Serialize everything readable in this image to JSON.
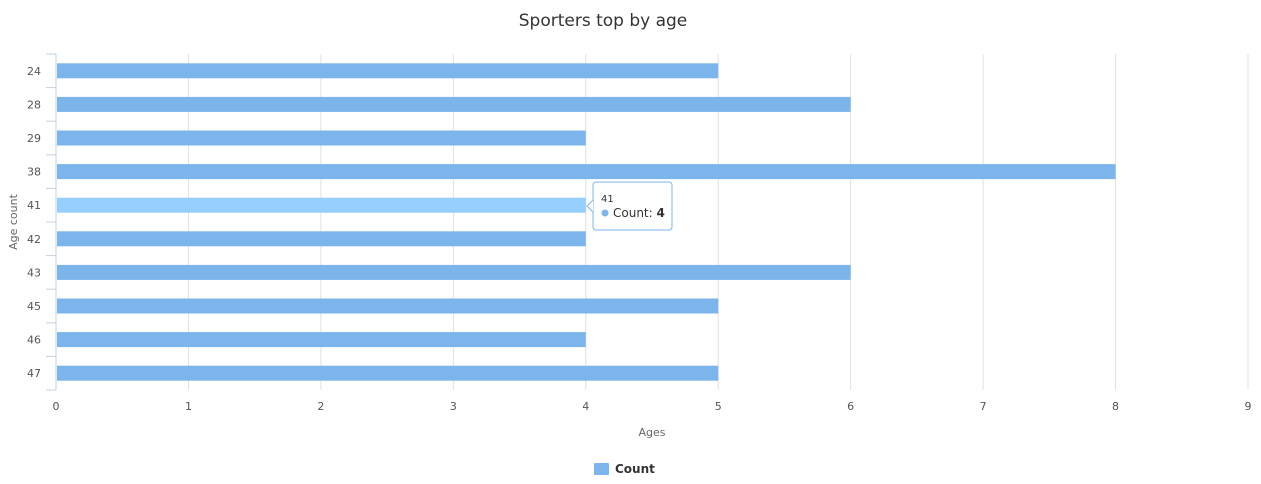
{
  "chart_data": {
    "type": "bar",
    "orientation": "horizontal",
    "title": "Sporters top by age",
    "xlabel": "Ages",
    "ylabel": "Age count",
    "categories": [
      "24",
      "28",
      "29",
      "38",
      "41",
      "42",
      "43",
      "45",
      "46",
      "47"
    ],
    "series": [
      {
        "name": "Count",
        "values": [
          5,
          6,
          4,
          8,
          4,
          4,
          6,
          5,
          4,
          5
        ],
        "color": "#7cb5ec"
      }
    ],
    "xlim": [
      0,
      9
    ],
    "x_ticks": [
      0,
      1,
      2,
      3,
      4,
      5,
      6,
      7,
      8,
      9
    ],
    "grid": true,
    "legend_position": "bottom-center",
    "highlight_color": "#95ceff",
    "tooltip": {
      "category": "41",
      "series_name": "Count",
      "value": 4
    }
  }
}
